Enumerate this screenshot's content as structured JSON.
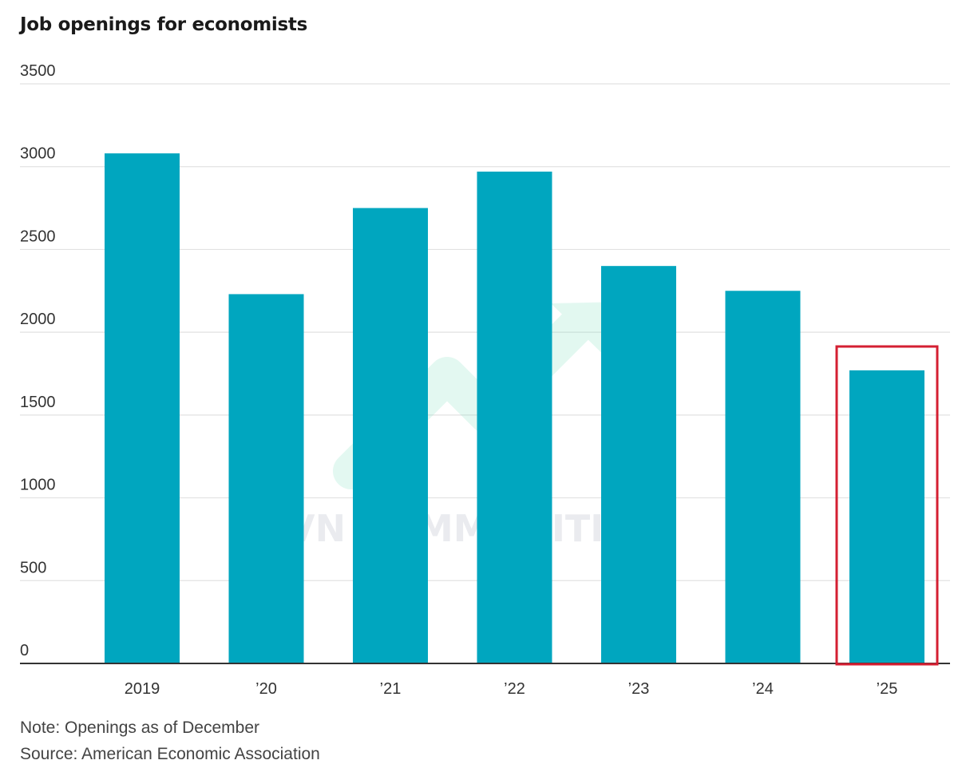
{
  "chart_data": {
    "type": "bar",
    "title": "Job openings for economists",
    "categories": [
      "2019",
      "’20",
      "’21",
      "’22",
      "’23",
      "’24",
      "’25"
    ],
    "values": [
      3080,
      2230,
      2750,
      2970,
      2400,
      2250,
      1770
    ],
    "ylim": [
      0,
      3500
    ],
    "yticks": [
      0,
      500,
      1000,
      1500,
      2000,
      2500,
      3000,
      3500
    ],
    "xlabel": "",
    "ylabel": "",
    "grid": true,
    "bar_color": "#00a6bf",
    "highlight": {
      "category": "’25",
      "color": "#d41f32"
    },
    "note": "Note: Openings as of December",
    "source": "Source: American Economic Association"
  },
  "watermark": {
    "text": "VN COMMODITIES",
    "arrow_color": "#7fe0c0"
  }
}
